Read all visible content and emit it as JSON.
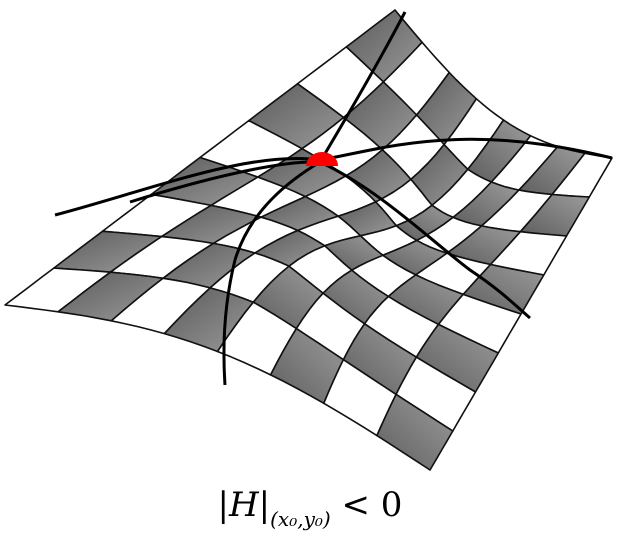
{
  "caption": {
    "bar_open": "|",
    "symbol": "H",
    "bar_close": "|",
    "subscript": "(x₀,y₀)",
    "relation": " < 0"
  },
  "colors": {
    "dark_tile": "#6f6f6f",
    "light_tile": "#ffffff",
    "grid_line": "#111111",
    "saddle_point": "#ff0000"
  },
  "surface": {
    "type": "saddle-surface-checkerboard",
    "highlighted_point": "saddle-point"
  }
}
